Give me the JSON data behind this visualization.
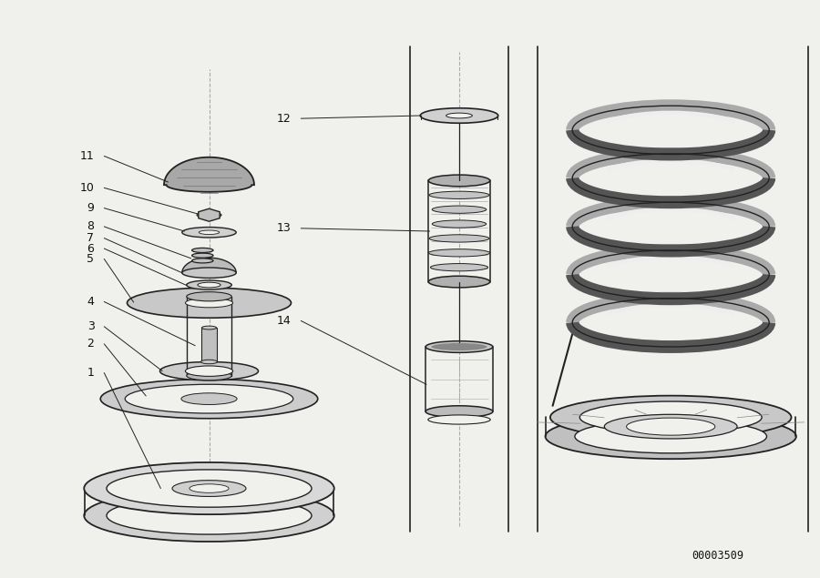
{
  "bg_color": "#f0f0ec",
  "diagram_code": "00003509",
  "line_color": "#222222",
  "text_color": "#111111",
  "labels_left": {
    "1": [
      0.115,
      0.355,
      0.196,
      0.155
    ],
    "2": [
      0.115,
      0.405,
      0.178,
      0.315
    ],
    "3": [
      0.115,
      0.435,
      0.198,
      0.358
    ],
    "4": [
      0.115,
      0.478,
      0.238,
      0.402
    ],
    "5": [
      0.115,
      0.552,
      0.163,
      0.477
    ],
    "6": [
      0.115,
      0.57,
      0.228,
      0.506
    ],
    "7": [
      0.115,
      0.588,
      0.222,
      0.528
    ],
    "8": [
      0.115,
      0.608,
      0.233,
      0.553
    ],
    "9": [
      0.115,
      0.64,
      0.225,
      0.6
    ],
    "10": [
      0.115,
      0.675,
      0.241,
      0.63
    ],
    "11": [
      0.115,
      0.73,
      0.205,
      0.685
    ]
  },
  "labels_mid": {
    "12": [
      0.355,
      0.795,
      0.513,
      0.8
    ],
    "13": [
      0.355,
      0.605,
      0.524,
      0.6
    ],
    "14": [
      0.355,
      0.445,
      0.52,
      0.335
    ]
  }
}
